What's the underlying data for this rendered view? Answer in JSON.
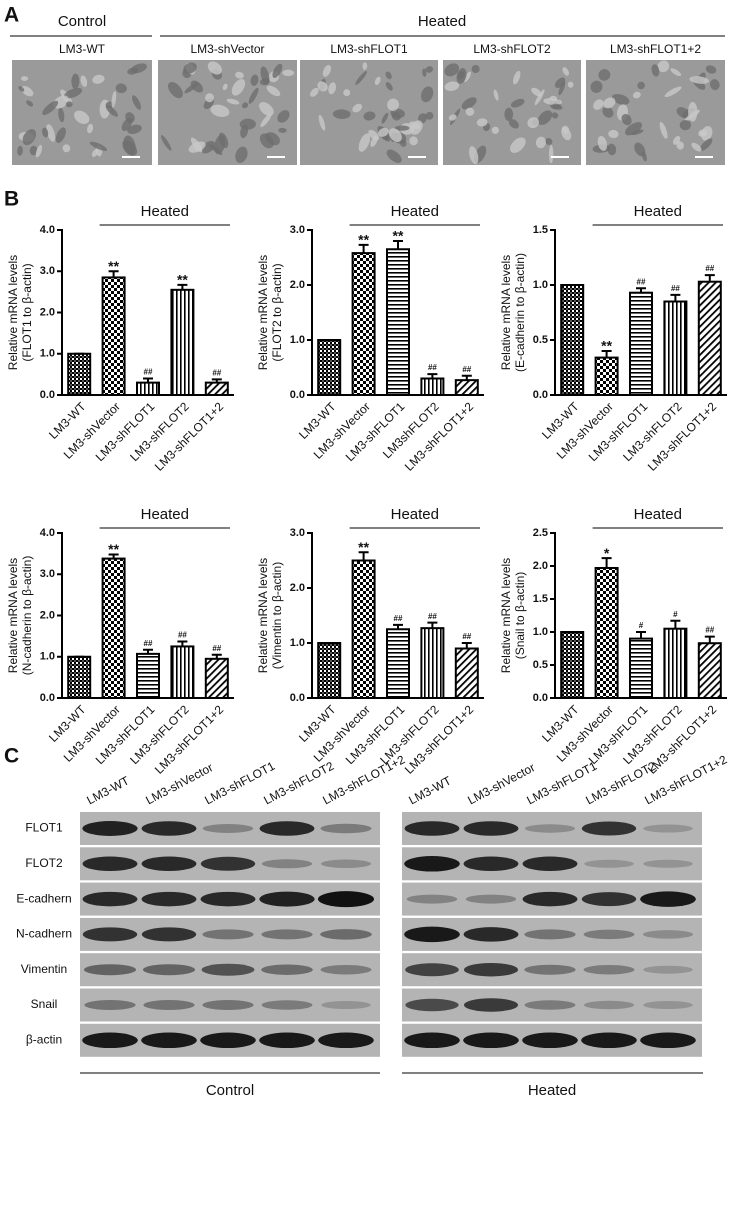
{
  "panel_labels": [
    "A",
    "B",
    "C"
  ],
  "panel_a": {
    "groups": [
      "Control",
      "Heated"
    ],
    "images": [
      "LM3-WT",
      "LM3-shVector",
      "LM3-shFLOT1",
      "LM3-shFLOT2",
      "LM3-shFLOT1+2"
    ]
  },
  "chart_data": [
    {
      "type": "bar",
      "ylabel": [
        "Relative mRNA levels",
        "(FLOT1 to β-actin)"
      ],
      "group_label": "Heated",
      "categories": [
        "LM3-WT",
        "LM3-shVector",
        "LM3-shFLOT1",
        "LM3-shFLOT2",
        "LM3-shFLOT1+2"
      ],
      "values": [
        1.0,
        2.85,
        0.3,
        2.55,
        0.3
      ],
      "errors": [
        0,
        0.15,
        0.1,
        0.12,
        0.08
      ],
      "annotations": [
        null,
        "**",
        "##",
        "**",
        "##"
      ],
      "patterns": [
        "dense",
        "check",
        "vlines",
        "vlines",
        "diag"
      ],
      "ylim": [
        0,
        4
      ],
      "yticks": [
        {
          "value": 0,
          "label": "0.0"
        },
        {
          "value": 1,
          "label": "1.0"
        },
        {
          "value": 2,
          "label": "2.0"
        },
        {
          "value": 3,
          "label": "3.0"
        },
        {
          "value": 4,
          "label": "4.0"
        }
      ]
    },
    {
      "type": "bar",
      "ylabel": [
        "Relative mRNA levels",
        "(FLOT2 to β-actin)"
      ],
      "group_label": "Heated",
      "categories": [
        "LM3-WT",
        "LM3-shVector",
        "LM3-shFLOT1",
        "LM3shFLOT2",
        "LM3-shFLOT1+2"
      ],
      "values": [
        1.0,
        2.58,
        2.65,
        0.3,
        0.27
      ],
      "errors": [
        0,
        0.15,
        0.15,
        0.08,
        0.08
      ],
      "annotations": [
        null,
        "**",
        "**",
        "##",
        "##"
      ],
      "patterns": [
        "dense",
        "check",
        "hlines",
        "vlines",
        "diag"
      ],
      "ylim": [
        0,
        3
      ],
      "yticks": [
        {
          "value": 0,
          "label": "0.0"
        },
        {
          "value": 1,
          "label": "1.0"
        },
        {
          "value": 2,
          "label": "2.0"
        },
        {
          "value": 3,
          "label": "3.0"
        }
      ]
    },
    {
      "type": "bar",
      "ylabel": [
        "Relative mRNA levels",
        "(E-cadherin to β-actin)"
      ],
      "group_label": "Heated",
      "categories": [
        "LM3-WT",
        "LM3-shVector",
        "LM3-shFLOT1",
        "LM3-shFLOT2",
        "LM3-shFLOT1+2"
      ],
      "values": [
        1.0,
        0.34,
        0.93,
        0.85,
        1.03
      ],
      "errors": [
        0,
        0.06,
        0.04,
        0.06,
        0.06
      ],
      "annotations": [
        null,
        "**",
        "##",
        "##",
        "##"
      ],
      "patterns": [
        "dense",
        "check",
        "hlines",
        "vlines",
        "diag"
      ],
      "ylim": [
        0,
        1.5
      ],
      "yticks": [
        {
          "value": 0,
          "label": "0.0"
        },
        0.5,
        {
          "value": 1,
          "label": "1.0"
        },
        1.5
      ]
    },
    {
      "type": "bar",
      "ylabel": [
        "Relative mRNA levels",
        "(N-cadherin to β-actin)"
      ],
      "group_label": "Heated",
      "categories": [
        "LM3-WT",
        "LM3-shVector",
        "LM3-shFLOT1",
        "LM3-shFLOT2",
        "LM3-shFLOT1+2"
      ],
      "values": [
        1.0,
        3.38,
        1.07,
        1.25,
        0.95
      ],
      "errors": [
        0,
        0.1,
        0.1,
        0.12,
        0.1
      ],
      "annotations": [
        null,
        "**",
        "##",
        "##",
        "##"
      ],
      "patterns": [
        "dense",
        "check",
        "hlines",
        "vlines",
        "diag"
      ],
      "ylim": [
        0,
        4
      ],
      "yticks": [
        {
          "value": 0,
          "label": "0.0"
        },
        {
          "value": 1,
          "label": "1.0"
        },
        {
          "value": 2,
          "label": "2.0"
        },
        {
          "value": 3,
          "label": "3.0"
        },
        {
          "value": 4,
          "label": "4.0"
        }
      ]
    },
    {
      "type": "bar",
      "ylabel": [
        "Relative mRNA levels",
        "(Vimentin to β-actin)"
      ],
      "group_label": "Heated",
      "categories": [
        "LM3-WT",
        "LM3-shVector",
        "LM3-shFLOT1",
        "LM3-shFLOT2",
        "LM3-shFLOT1+2"
      ],
      "values": [
        1.0,
        2.5,
        1.25,
        1.27,
        0.9
      ],
      "errors": [
        0,
        0.15,
        0.08,
        0.1,
        0.1
      ],
      "annotations": [
        null,
        "**",
        "##",
        "##",
        "##"
      ],
      "patterns": [
        "dense",
        "check",
        "hlines",
        "vlines",
        "diag"
      ],
      "ylim": [
        0,
        3
      ],
      "yticks": [
        {
          "value": 0,
          "label": "0.0"
        },
        {
          "value": 1,
          "label": "1.0"
        },
        {
          "value": 2,
          "label": "2.0"
        },
        {
          "value": 3,
          "label": "3.0"
        }
      ]
    },
    {
      "type": "bar",
      "ylabel": [
        "Relative mRNA levels",
        "(Snail to β-actin)"
      ],
      "group_label": "Heated",
      "categories": [
        "LM3-WT",
        "LM3-shVector",
        "LM3-shFLOT1",
        "LM3-shFLOT2",
        "LM3-shFLOT1+2"
      ],
      "values": [
        1.0,
        1.97,
        0.9,
        1.05,
        0.83
      ],
      "errors": [
        0,
        0.15,
        0.1,
        0.12,
        0.1
      ],
      "annotations": [
        null,
        "*",
        "#",
        "#",
        "##"
      ],
      "patterns": [
        "dense",
        "check",
        "hlines",
        "vlines",
        "diag"
      ],
      "ylim": [
        0,
        2.5
      ],
      "yticks": [
        {
          "value": 0,
          "label": "0.0"
        },
        0.5,
        {
          "value": 1,
          "label": "1.0"
        },
        1.5,
        {
          "value": 2,
          "label": "2.0"
        },
        2.5
      ]
    }
  ],
  "panel_c": {
    "columns": [
      "LM3-WT",
      "LM3-shVector",
      "LM3-shFLOT1",
      "LM3-shFLOT2",
      "LM3-shFLOT1+2"
    ],
    "rows": [
      "FLOT1",
      "FLOT2",
      "E-cadhern",
      "N-cadhern",
      "Vimentin",
      "Snail",
      "β-actin"
    ],
    "groups": [
      "Control",
      "Heated"
    ]
  }
}
